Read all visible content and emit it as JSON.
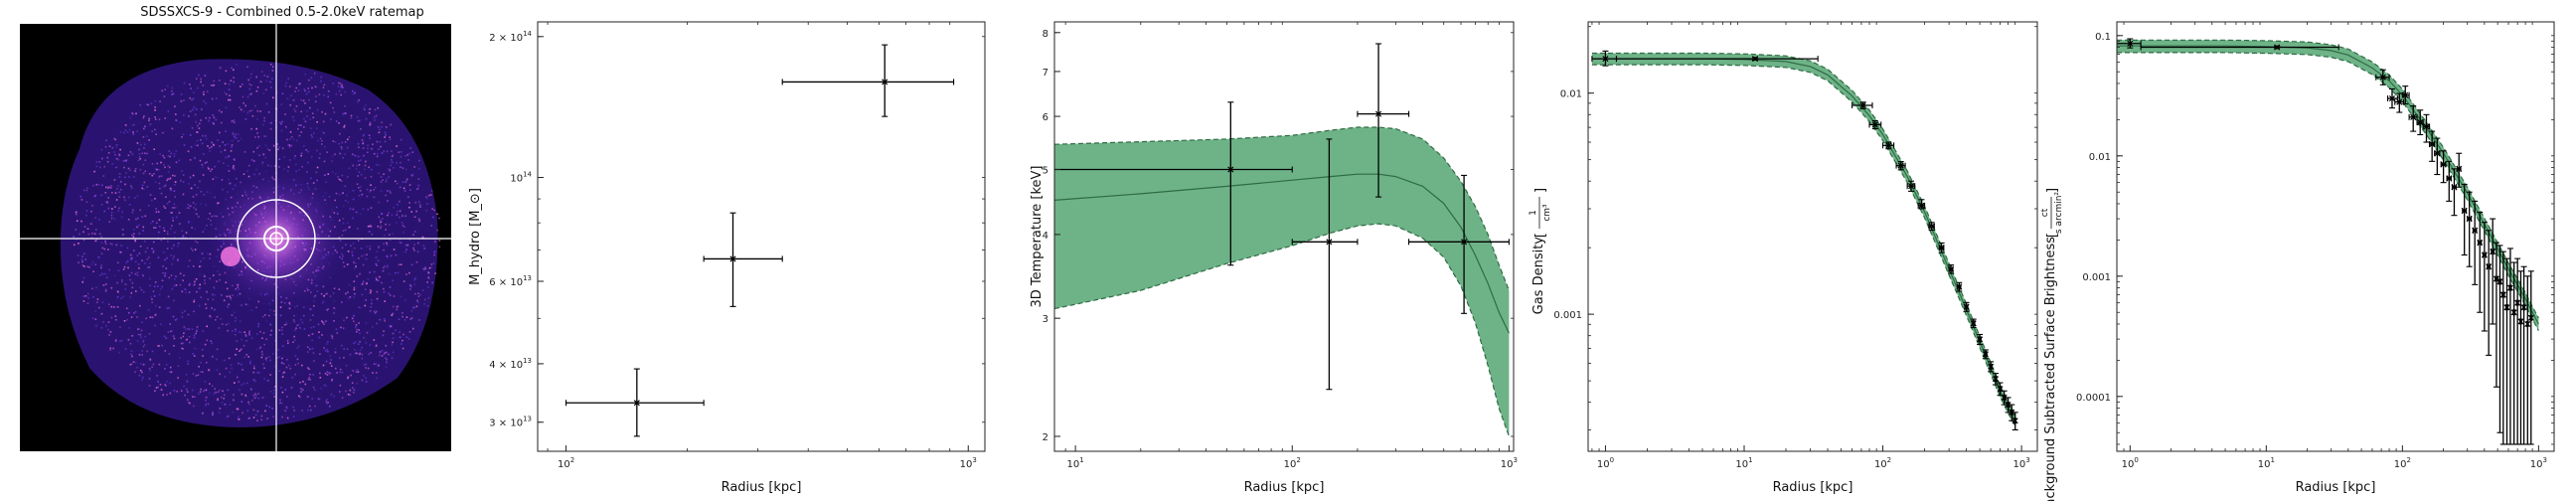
{
  "chart_data": [
    {
      "type": "image",
      "title": "SDSSXCS-9 - Combined 0.5-2.0keV ratemap",
      "colors": {
        "background": "#000000",
        "emission": "#6a36d8",
        "bright": "#ff7be6",
        "crosshair": "#ffffff"
      }
    },
    {
      "type": "scatter",
      "xlabel": "Radius [kpc]",
      "ylabel": "M_hydro [M_⊙]",
      "xscale": "log",
      "yscale": "log",
      "xlim": [
        85,
        1100
      ],
      "ylim": [
        26000000000000.0,
        215000000000000.0
      ],
      "x_ticks": [
        {
          "value": 100,
          "base": "10",
          "exp": "2"
        },
        {
          "value": 1000,
          "base": "10",
          "exp": "3"
        }
      ],
      "y_ticks": [
        {
          "value": 30000000000000.0,
          "base": "3 × 10",
          "exp": "13"
        },
        {
          "value": 40000000000000.0,
          "base": "4 × 10",
          "exp": "13"
        },
        {
          "value": 60000000000000.0,
          "base": "6 × 10",
          "exp": "13"
        },
        {
          "value": 100000000000000.0,
          "base": "10",
          "exp": "14"
        },
        {
          "value": 200000000000000.0,
          "base": "2 × 10",
          "exp": "14"
        }
      ],
      "points": [
        {
          "x": 150,
          "xlo": 100,
          "xhi": 220,
          "y": 33000000000000.0,
          "ylo": 28000000000000.0,
          "yhi": 39000000000000.0
        },
        {
          "x": 260,
          "xlo": 220,
          "xhi": 345,
          "y": 67000000000000.0,
          "ylo": 53000000000000.0,
          "yhi": 84000000000000.0
        },
        {
          "x": 620,
          "xlo": 345,
          "xhi": 920,
          "y": 160000000000000.0,
          "ylo": 135000000000000.0,
          "yhi": 192000000000000.0
        }
      ],
      "colors": {
        "points": "#000000"
      }
    },
    {
      "type": "line",
      "xlabel": "Radius [kpc]",
      "ylabel": "3D Temperature [keV]",
      "xscale": "log",
      "yscale": "log",
      "xlim": [
        8,
        1050
      ],
      "ylim": [
        1.9,
        8.3
      ],
      "x_ticks": [
        {
          "value": 10,
          "base": "10",
          "exp": "1"
        },
        {
          "value": 100,
          "base": "10",
          "exp": "2"
        },
        {
          "value": 1000,
          "base": "10",
          "exp": "3"
        }
      ],
      "y_ticks": [
        {
          "value": 2,
          "base": "2",
          "exp": ""
        },
        {
          "value": 3,
          "base": "3",
          "exp": ""
        },
        {
          "value": 4,
          "base": "4",
          "exp": ""
        },
        {
          "value": 5,
          "base": "5",
          "exp": ""
        },
        {
          "value": 6,
          "base": "6",
          "exp": ""
        },
        {
          "value": 7,
          "base": "7",
          "exp": ""
        },
        {
          "value": 8,
          "base": "8",
          "exp": ""
        }
      ],
      "model": {
        "x": [
          8,
          20,
          50,
          100,
          150,
          200,
          250,
          300,
          400,
          500,
          600,
          700,
          800,
          900,
          1000
        ],
        "y": [
          4.5,
          4.6,
          4.72,
          4.82,
          4.88,
          4.92,
          4.92,
          4.88,
          4.72,
          4.45,
          4.1,
          3.72,
          3.38,
          3.06,
          2.85
        ],
        "upper": [
          5.45,
          5.5,
          5.55,
          5.62,
          5.72,
          5.78,
          5.78,
          5.75,
          5.55,
          5.2,
          4.8,
          4.4,
          4.0,
          3.6,
          3.3
        ],
        "lower": [
          3.1,
          3.3,
          3.62,
          3.85,
          4.02,
          4.12,
          4.15,
          4.12,
          3.95,
          3.7,
          3.35,
          2.95,
          2.55,
          2.2,
          2.0
        ]
      },
      "points": [
        {
          "x": 52,
          "xlo": 8,
          "xhi": 100,
          "y": 5.0,
          "ylo": 3.6,
          "yhi": 6.3
        },
        {
          "x": 148,
          "xlo": 100,
          "xhi": 200,
          "y": 3.9,
          "ylo": 2.35,
          "yhi": 5.55
        },
        {
          "x": 250,
          "xlo": 200,
          "xhi": 345,
          "y": 6.05,
          "ylo": 4.55,
          "yhi": 7.7
        },
        {
          "x": 620,
          "xlo": 345,
          "xhi": 1000,
          "y": 3.9,
          "ylo": 3.05,
          "yhi": 4.9
        }
      ],
      "colors": {
        "band": "#5aa876",
        "band_edge": "#2f6b45",
        "points": "#000000"
      }
    },
    {
      "type": "line",
      "xlabel": "Radius [kpc]",
      "ylabel": "Gas Density",
      "ylabel_unit_num": "1",
      "ylabel_unit_den": "cm³",
      "xscale": "log",
      "yscale": "log",
      "xlim": [
        0.75,
        1300
      ],
      "ylim": 0.00024,
      "ylim_max": 0.021,
      "x_ticks": [
        {
          "value": 1,
          "base": "10",
          "exp": "0"
        },
        {
          "value": 10,
          "base": "10",
          "exp": "1"
        },
        {
          "value": 100,
          "base": "10",
          "exp": "2"
        },
        {
          "value": 1000,
          "base": "10",
          "exp": "3"
        }
      ],
      "y_ticks": [
        {
          "value": 0.001,
          "label": "0.001"
        },
        {
          "value": 0.01,
          "label": "0.01"
        }
      ],
      "model": {
        "x": [
          0.8,
          1,
          2,
          5,
          10,
          20,
          30,
          40,
          60,
          80,
          100,
          150,
          200,
          300,
          400,
          500,
          600,
          700,
          800,
          900
        ],
        "y": [
          0.0143,
          0.0143,
          0.0143,
          0.0143,
          0.0142,
          0.0139,
          0.0132,
          0.0121,
          0.0097,
          0.0079,
          0.0065,
          0.0042,
          0.0029,
          0.0016,
          0.00105,
          0.00075,
          0.00057,
          0.00045,
          0.00038,
          0.00033
        ],
        "rel_width": 0.06
      },
      "points": [
        {
          "x": 1.0,
          "xlo": 0.8,
          "xhi": 1.2,
          "y": 0.0143,
          "ylo": 0.0133,
          "yhi": 0.0155
        },
        {
          "x": 12,
          "xlo": 1.2,
          "xhi": 34,
          "y": 0.0143,
          "ylo": 0.0141,
          "yhi": 0.0145
        },
        {
          "x": 72,
          "xlo": 60,
          "xhi": 84,
          "y": 0.0088,
          "ylo": 0.0085,
          "yhi": 0.0091
        },
        {
          "x": 88,
          "xlo": 80,
          "xhi": 97,
          "y": 0.0072,
          "ylo": 0.0069,
          "yhi": 0.0075
        },
        {
          "x": 110,
          "xlo": 100,
          "xhi": 120,
          "y": 0.0058,
          "ylo": 0.0056,
          "yhi": 0.006
        },
        {
          "x": 135,
          "xlo": 125,
          "xhi": 145,
          "y": 0.0047,
          "ylo": 0.0045,
          "yhi": 0.0049
        },
        {
          "x": 160,
          "xlo": 150,
          "xhi": 170,
          "y": 0.0038,
          "ylo": 0.0036,
          "yhi": 0.004
        },
        {
          "x": 190,
          "xlo": 180,
          "xhi": 200,
          "y": 0.0031,
          "ylo": 0.003,
          "yhi": 0.0033
        },
        {
          "x": 225,
          "xlo": 215,
          "xhi": 235,
          "y": 0.0025,
          "ylo": 0.0024,
          "yhi": 0.0026
        },
        {
          "x": 265,
          "xlo": 255,
          "xhi": 275,
          "y": 0.002,
          "ylo": 0.0019,
          "yhi": 0.0021
        },
        {
          "x": 310,
          "xlo": 300,
          "xhi": 320,
          "y": 0.0016,
          "ylo": 0.00153,
          "yhi": 0.00167
        },
        {
          "x": 355,
          "xlo": 345,
          "xhi": 365,
          "y": 0.00133,
          "ylo": 0.00127,
          "yhi": 0.00139
        },
        {
          "x": 400,
          "xlo": 390,
          "xhi": 410,
          "y": 0.00108,
          "ylo": 0.00103,
          "yhi": 0.00113
        },
        {
          "x": 450,
          "xlo": 440,
          "xhi": 460,
          "y": 0.00091,
          "ylo": 0.00087,
          "yhi": 0.00095
        },
        {
          "x": 500,
          "xlo": 490,
          "xhi": 510,
          "y": 0.00077,
          "ylo": 0.00073,
          "yhi": 0.00081
        },
        {
          "x": 550,
          "xlo": 540,
          "xhi": 560,
          "y": 0.00066,
          "ylo": 0.00063,
          "yhi": 0.00069
        },
        {
          "x": 600,
          "xlo": 590,
          "xhi": 610,
          "y": 0.00058,
          "ylo": 0.00055,
          "yhi": 0.00061
        },
        {
          "x": 650,
          "xlo": 640,
          "xhi": 660,
          "y": 0.00051,
          "ylo": 0.00048,
          "yhi": 0.00054
        },
        {
          "x": 700,
          "xlo": 690,
          "xhi": 710,
          "y": 0.00046,
          "ylo": 0.00043,
          "yhi": 0.00049
        },
        {
          "x": 750,
          "xlo": 740,
          "xhi": 760,
          "y": 0.00042,
          "ylo": 0.00039,
          "yhi": 0.00045
        },
        {
          "x": 800,
          "xlo": 790,
          "xhi": 810,
          "y": 0.00039,
          "ylo": 0.00036,
          "yhi": 0.00042
        },
        {
          "x": 850,
          "xlo": 840,
          "xhi": 860,
          "y": 0.00036,
          "ylo": 0.00033,
          "yhi": 0.00039
        },
        {
          "x": 900,
          "xlo": 890,
          "xhi": 910,
          "y": 0.00033,
          "ylo": 0.0003,
          "yhi": 0.00036
        }
      ],
      "colors": {
        "band": "#5aa876",
        "band_edge": "#2f6b45",
        "points": "#000000"
      }
    },
    {
      "type": "line",
      "xlabel": "Radius [kpc]",
      "ylabel": "Background Subtracted Surface Brightness",
      "ylabel_unit_num": "ct",
      "ylabel_unit_den": "s arcmin²",
      "xscale": "log",
      "yscale": "log",
      "xlim": [
        0.8,
        1300
      ],
      "ylim": [
        3.5e-05,
        0.13
      ],
      "x_ticks": [
        {
          "value": 1,
          "base": "10",
          "exp": "0"
        },
        {
          "value": 10,
          "base": "10",
          "exp": "1"
        },
        {
          "value": 100,
          "base": "10",
          "exp": "2"
        },
        {
          "value": 1000,
          "base": "10",
          "exp": "3"
        }
      ],
      "y_ticks": [
        {
          "value": 0.0001,
          "label": "0.0001"
        },
        {
          "value": 0.001,
          "label": "0.001"
        },
        {
          "value": 0.01,
          "label": "0.01"
        },
        {
          "value": 0.1,
          "label": "0.1"
        }
      ],
      "model": {
        "x": [
          0.8,
          1,
          2,
          5,
          10,
          20,
          30,
          40,
          60,
          80,
          100,
          150,
          200,
          300,
          400,
          500,
          600,
          700,
          800,
          900,
          1000
        ],
        "y": [
          0.082,
          0.082,
          0.082,
          0.082,
          0.081,
          0.079,
          0.075,
          0.069,
          0.054,
          0.042,
          0.032,
          0.017,
          0.0105,
          0.0049,
          0.0027,
          0.0017,
          0.00115,
          0.00085,
          0.00065,
          0.0005,
          0.0004
        ],
        "rel_width": 0.12
      },
      "points": [
        {
          "x": 1.0,
          "xlo": 0.8,
          "xhi": 1.2,
          "y": 0.086,
          "ylo": 0.079,
          "yhi": 0.094
        },
        {
          "x": 12,
          "xlo": 1.2,
          "xhi": 34,
          "y": 0.08,
          "ylo": 0.078,
          "yhi": 0.082
        },
        {
          "x": 72,
          "xlo": 64,
          "xhi": 80,
          "y": 0.045,
          "ylo": 0.039,
          "yhi": 0.052
        },
        {
          "x": 84,
          "xlo": 78,
          "xhi": 92,
          "y": 0.03,
          "ylo": 0.025,
          "yhi": 0.036
        },
        {
          "x": 95,
          "xlo": 88,
          "xhi": 102,
          "y": 0.028,
          "ylo": 0.023,
          "yhi": 0.033
        },
        {
          "x": 105,
          "xlo": 100,
          "xhi": 112,
          "y": 0.032,
          "ylo": 0.027,
          "yhi": 0.038
        },
        {
          "x": 120,
          "xlo": 112,
          "xhi": 128,
          "y": 0.021,
          "ylo": 0.016,
          "yhi": 0.026
        },
        {
          "x": 135,
          "xlo": 128,
          "xhi": 142,
          "y": 0.019,
          "ylo": 0.015,
          "yhi": 0.024
        },
        {
          "x": 150,
          "xlo": 142,
          "xhi": 158,
          "y": 0.0175,
          "ylo": 0.013,
          "yhi": 0.022
        },
        {
          "x": 165,
          "xlo": 158,
          "xhi": 172,
          "y": 0.0125,
          "ylo": 0.009,
          "yhi": 0.016
        },
        {
          "x": 180,
          "xlo": 172,
          "xhi": 188,
          "y": 0.0105,
          "ylo": 0.007,
          "yhi": 0.014
        },
        {
          "x": 200,
          "xlo": 192,
          "xhi": 208,
          "y": 0.0085,
          "ylo": 0.006,
          "yhi": 0.011
        },
        {
          "x": 220,
          "xlo": 212,
          "xhi": 228,
          "y": 0.0065,
          "ylo": 0.0042,
          "yhi": 0.009
        },
        {
          "x": 240,
          "xlo": 232,
          "xhi": 248,
          "y": 0.0055,
          "ylo": 0.0032,
          "yhi": 0.0078
        },
        {
          "x": 260,
          "xlo": 252,
          "xhi": 268,
          "y": 0.0078,
          "ylo": 0.0055,
          "yhi": 0.0105
        },
        {
          "x": 285,
          "xlo": 276,
          "xhi": 294,
          "y": 0.0035,
          "ylo": 0.0015,
          "yhi": 0.0058
        },
        {
          "x": 310,
          "xlo": 300,
          "xhi": 320,
          "y": 0.003,
          "ylo": 0.0012,
          "yhi": 0.005
        },
        {
          "x": 340,
          "xlo": 330,
          "xhi": 350,
          "y": 0.0024,
          "ylo": 0.00085,
          "yhi": 0.0042
        },
        {
          "x": 370,
          "xlo": 360,
          "xhi": 380,
          "y": 0.0019,
          "ylo": 0.0005,
          "yhi": 0.0034
        },
        {
          "x": 400,
          "xlo": 390,
          "xhi": 410,
          "y": 0.0015,
          "ylo": 0.00035,
          "yhi": 0.0028
        },
        {
          "x": 430,
          "xlo": 420,
          "xhi": 440,
          "y": 0.0012,
          "ylo": 0.00022,
          "yhi": 0.0024
        },
        {
          "x": 460,
          "xlo": 450,
          "xhi": 470,
          "y": 0.0016,
          "ylo": 0.0004,
          "yhi": 0.003
        },
        {
          "x": 490,
          "xlo": 480,
          "xhi": 500,
          "y": 0.00095,
          "ylo": 0.00012,
          "yhi": 0.0019
        },
        {
          "x": 520,
          "xlo": 510,
          "xhi": 530,
          "y": 0.0009,
          "ylo": 5e-05,
          "yhi": 0.0018
        },
        {
          "x": 550,
          "xlo": 540,
          "xhi": 560,
          "y": 0.0007,
          "ylo": 4e-05,
          "yhi": 0.0016
        },
        {
          "x": 585,
          "xlo": 575,
          "xhi": 595,
          "y": 0.00055,
          "ylo": 4e-05,
          "yhi": 0.0014
        },
        {
          "x": 620,
          "xlo": 610,
          "xhi": 630,
          "y": 0.0008,
          "ylo": 4e-05,
          "yhi": 0.0017
        },
        {
          "x": 660,
          "xlo": 650,
          "xhi": 670,
          "y": 0.0005,
          "ylo": 4e-05,
          "yhi": 0.0013
        },
        {
          "x": 700,
          "xlo": 690,
          "xhi": 710,
          "y": 0.0006,
          "ylo": 4e-05,
          "yhi": 0.0014
        },
        {
          "x": 740,
          "xlo": 730,
          "xhi": 750,
          "y": 0.00042,
          "ylo": 4e-05,
          "yhi": 0.0011
        },
        {
          "x": 780,
          "xlo": 770,
          "xhi": 790,
          "y": 0.00055,
          "ylo": 4e-05,
          "yhi": 0.0012
        },
        {
          "x": 830,
          "xlo": 820,
          "xhi": 840,
          "y": 0.0004,
          "ylo": 4e-05,
          "yhi": 0.001
        },
        {
          "x": 880,
          "xlo": 870,
          "xhi": 890,
          "y": 0.00045,
          "ylo": 4e-05,
          "yhi": 0.0011
        }
      ],
      "colors": {
        "band": "#5aa876",
        "band_edge": "#2f6b45",
        "points": "#000000"
      }
    }
  ]
}
